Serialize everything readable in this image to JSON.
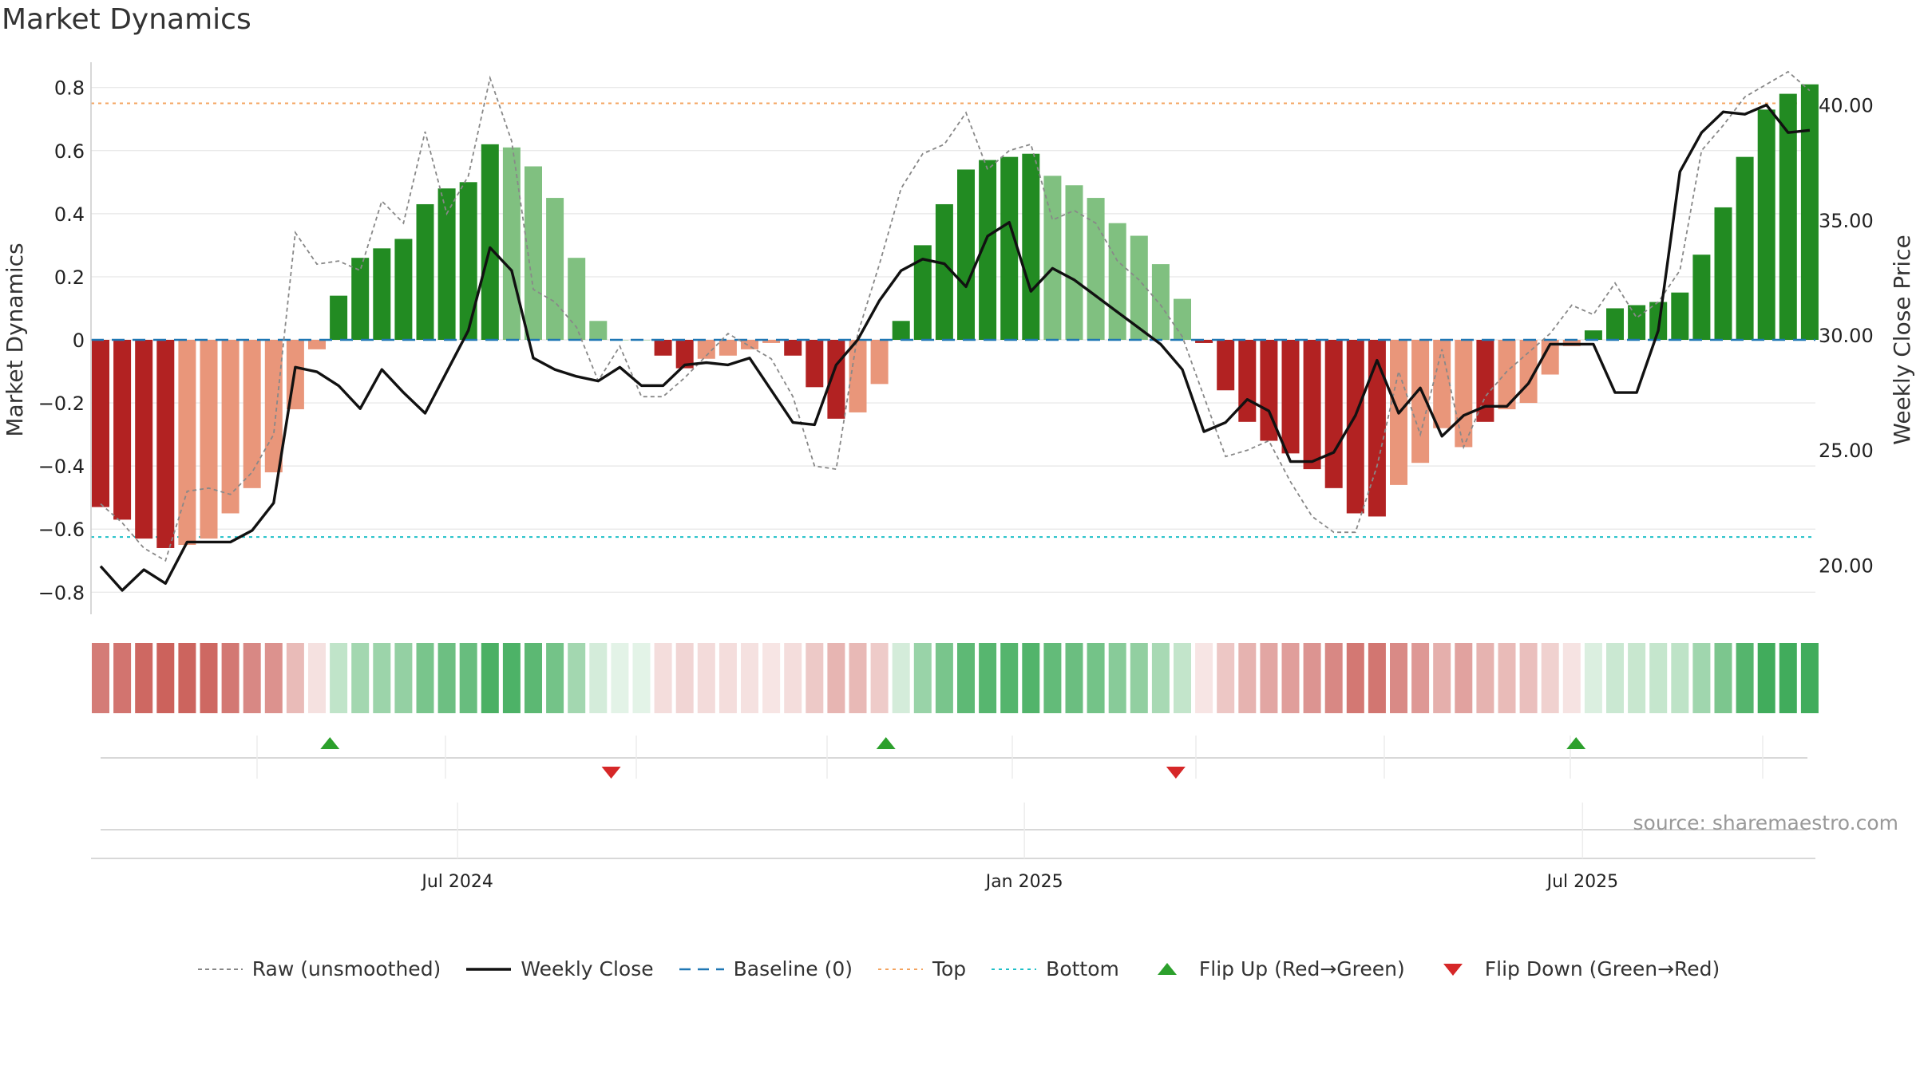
{
  "title": "Market Dynamics",
  "source": "source: sharemaestro.com",
  "colors": {
    "strong_red": "#b22222",
    "weak_red": "#e9967a",
    "strong_green": "#228b22",
    "weak_green": "#80c080",
    "raw": "#888888",
    "close": "#111111",
    "baseline": "#1f77b4",
    "top": "#f4a460",
    "bottom": "#20c0c8",
    "flip_up": "#2ca02c",
    "flip_down": "#d62728"
  },
  "chart_data": {
    "type": "bar",
    "title": "Market Dynamics",
    "ylabel": "Market Dynamics",
    "y2label": "Weekly Close Price",
    "ylim": [
      -0.87,
      0.87
    ],
    "y2lim": [
      17.86,
      41.72
    ],
    "yticks": [
      -0.8,
      -0.6,
      -0.4,
      -0.2,
      0,
      0.2,
      0.4,
      0.6,
      0.8
    ],
    "ytick_labels": [
      "−0.8",
      "−0.6",
      "−0.4",
      "−0.2",
      "0",
      "0.2",
      "0.4",
      "0.6",
      "0.8"
    ],
    "y2ticks": [
      20,
      25,
      30,
      35,
      40
    ],
    "y2tick_labels": [
      "20.00",
      "25.00",
      "30.00",
      "35.00",
      "40.00"
    ],
    "x_tick_labels": [
      {
        "label": "Jul 2024",
        "week": 16.5
      },
      {
        "label": "Jan 2025",
        "week": 42.7
      },
      {
        "label": "Jul 2025",
        "week": 68.5
      }
    ],
    "top_line": 0.75,
    "bottom_line": -0.625,
    "baseline": 0,
    "weeks": 80,
    "bars": [
      -0.53,
      -0.57,
      -0.63,
      -0.66,
      -0.65,
      -0.63,
      -0.55,
      -0.47,
      -0.42,
      -0.22,
      -0.03,
      0.14,
      0.26,
      0.29,
      0.32,
      0.43,
      0.48,
      0.5,
      0.62,
      0.61,
      0.55,
      0.45,
      0.26,
      0.06,
      0,
      0,
      -0.05,
      -0.09,
      -0.06,
      -0.05,
      -0.03,
      -0.01,
      -0.05,
      -0.15,
      -0.25,
      -0.23,
      -0.14,
      0.06,
      0.3,
      0.43,
      0.54,
      0.57,
      0.58,
      0.59,
      0.52,
      0.49,
      0.45,
      0.37,
      0.33,
      0.24,
      0.13,
      -0.01,
      -0.16,
      -0.26,
      -0.32,
      -0.36,
      -0.41,
      -0.47,
      -0.55,
      -0.56,
      -0.46,
      -0.39,
      -0.28,
      -0.34,
      -0.26,
      -0.22,
      -0.2,
      -0.11,
      -0.02,
      0.03,
      0.1,
      0.11,
      0.12,
      0.15,
      0.27,
      0.42,
      0.58,
      0.73,
      0.78,
      0.81
    ],
    "bar_shade": [
      "strong",
      "strong",
      "strong",
      "strong",
      "weak",
      "weak",
      "weak",
      "weak",
      "weak",
      "weak",
      "weak",
      "strong",
      "strong",
      "strong",
      "strong",
      "strong",
      "strong",
      "strong",
      "strong",
      "weak",
      "weak",
      "weak",
      "weak",
      "weak",
      "weak",
      "weak",
      "strong",
      "strong",
      "weak",
      "weak",
      "weak",
      "weak",
      "strong",
      "strong",
      "strong",
      "weak",
      "weak",
      "strong",
      "strong",
      "strong",
      "strong",
      "strong",
      "strong",
      "strong",
      "weak",
      "weak",
      "weak",
      "weak",
      "weak",
      "weak",
      "weak",
      "strong",
      "strong",
      "strong",
      "strong",
      "strong",
      "strong",
      "strong",
      "strong",
      "strong",
      "weak",
      "weak",
      "weak",
      "weak",
      "strong",
      "weak",
      "weak",
      "weak",
      "weak",
      "strong",
      "strong",
      "strong",
      "strong",
      "strong",
      "strong",
      "strong",
      "strong",
      "strong",
      "strong",
      "strong"
    ],
    "series": [
      {
        "name": "Raw (unsmoothed)",
        "values": [
          -0.52,
          -0.58,
          -0.66,
          -0.7,
          -0.48,
          -0.47,
          -0.49,
          -0.42,
          -0.3,
          0.34,
          0.24,
          0.25,
          0.22,
          0.44,
          0.37,
          0.66,
          0.4,
          0.52,
          0.83,
          0.63,
          0.16,
          0.12,
          0.04,
          -0.13,
          -0.02,
          -0.18,
          -0.18,
          -0.12,
          -0.05,
          0.02,
          -0.02,
          -0.06,
          -0.18,
          -0.4,
          -0.41,
          0.02,
          0.24,
          0.48,
          0.59,
          0.62,
          0.72,
          0.54,
          0.6,
          0.62,
          0.38,
          0.41,
          0.37,
          0.25,
          0.19,
          0.11,
          0.01,
          -0.18,
          -0.37,
          -0.35,
          -0.32,
          -0.45,
          -0.56,
          -0.61,
          -0.61,
          -0.4,
          -0.1,
          -0.3,
          -0.03,
          -0.34,
          -0.18,
          -0.1,
          -0.04,
          0.02,
          0.11,
          0.08,
          0.18,
          0.07,
          0.12,
          0.22,
          0.6,
          0.68,
          0.77,
          0.81,
          0.85,
          0.79
        ]
      },
      {
        "name": "Weekly Close",
        "values": [
          19.95,
          18.9,
          19.8,
          19.2,
          21.0,
          21.0,
          21.0,
          21.5,
          22.7,
          28.6,
          28.4,
          27.8,
          26.8,
          28.5,
          27.5,
          26.6,
          28.4,
          30.2,
          33.8,
          32.8,
          29.0,
          28.5,
          28.2,
          28.0,
          28.6,
          27.8,
          27.8,
          28.7,
          28.8,
          28.7,
          29.0,
          27.6,
          26.2,
          26.1,
          28.7,
          29.8,
          31.5,
          32.8,
          33.3,
          33.1,
          32.1,
          34.3,
          34.9,
          31.9,
          32.9,
          32.4,
          31.7,
          31.0,
          30.3,
          29.6,
          28.5,
          25.8,
          26.2,
          27.2,
          26.7,
          24.5,
          24.5,
          24.9,
          26.5,
          28.9,
          26.6,
          27.7,
          25.6,
          26.5,
          26.9,
          26.9,
          27.9,
          29.6,
          29.6,
          29.6,
          27.5,
          27.5,
          30.2,
          37.1,
          38.8,
          39.7,
          39.6,
          40.0,
          38.8,
          38.9
        ]
      }
    ],
    "flip_up_weeks": [
      10.6,
      36.3,
      68.2
    ],
    "flip_down_weeks": [
      23.6,
      49.7
    ],
    "legend": [
      {
        "key": "raw",
        "label": "Raw (unsmoothed)"
      },
      {
        "key": "close",
        "label": "Weekly Close"
      },
      {
        "key": "baseline",
        "label": "Baseline (0)"
      },
      {
        "key": "top",
        "label": "Top"
      },
      {
        "key": "bottom",
        "label": "Bottom"
      },
      {
        "key": "flip_up",
        "label": "Flip Up (Red→Green)"
      },
      {
        "key": "flip_down",
        "label": "Flip Down (Green→Red)"
      }
    ]
  }
}
